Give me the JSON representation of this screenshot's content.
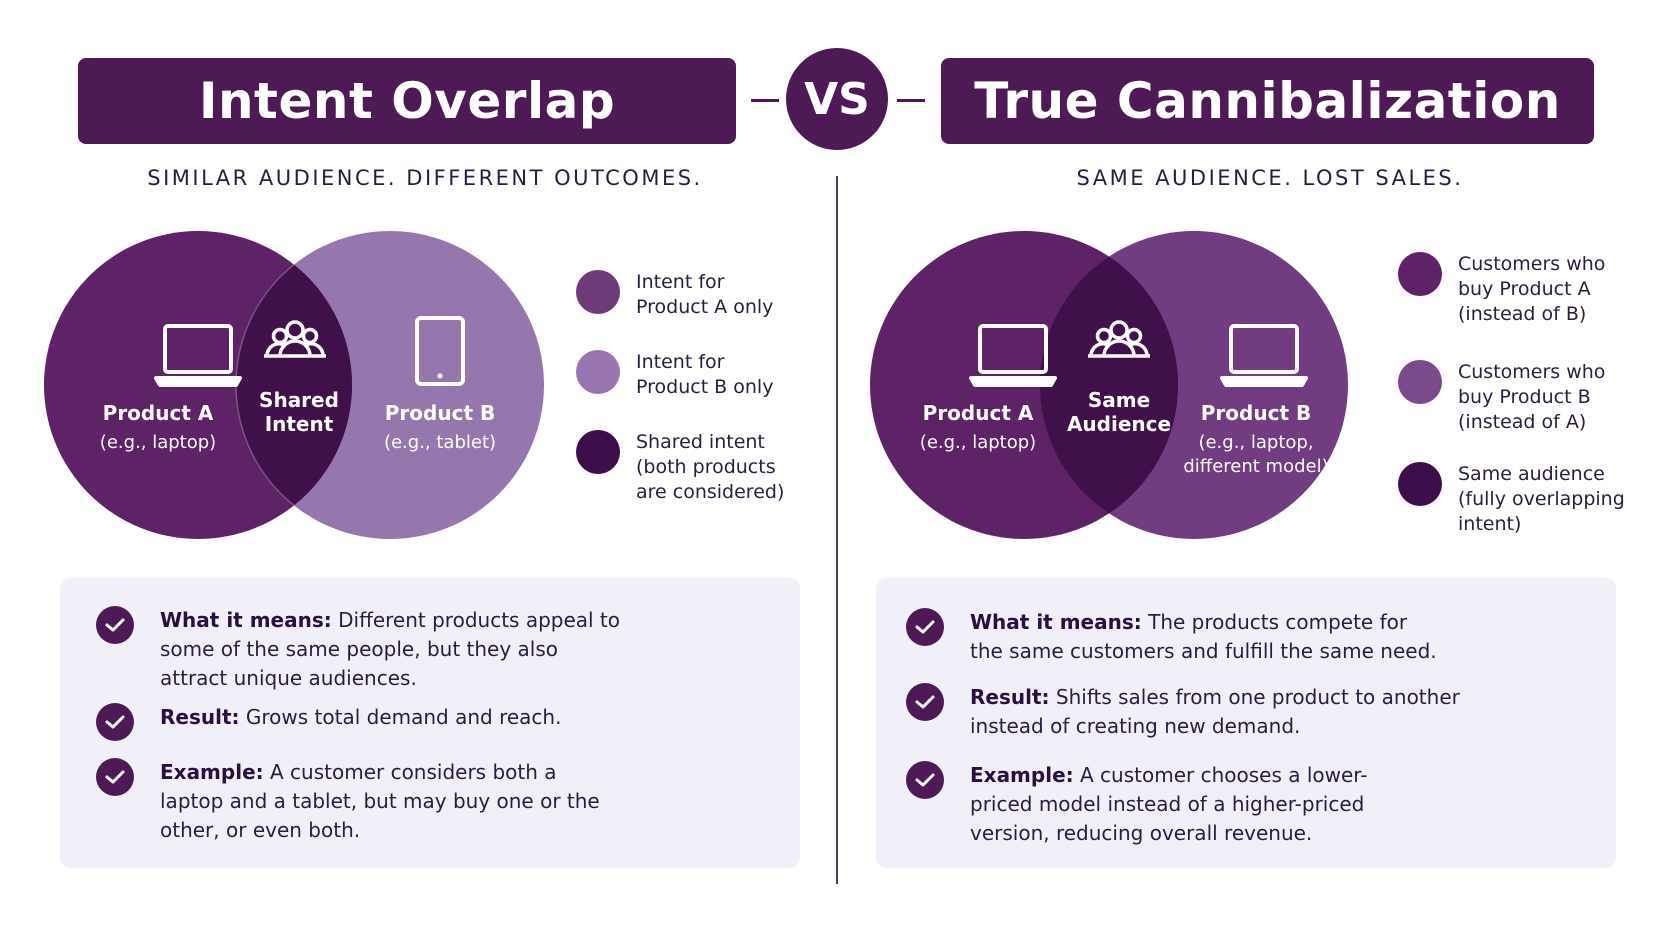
{
  "header": {
    "left_title": "Intent Overlap",
    "vs_label": "VS",
    "right_title": "True Cannibalization"
  },
  "left": {
    "subtitle": "SIMILAR AUDIENCE. DIFFERENT OUTCOMES.",
    "venn": {
      "a_label": "Product A",
      "a_sub": "(e.g., laptop)",
      "overlap_line1": "Shared",
      "overlap_line2": "Intent",
      "b_label": "Product B",
      "b_sub": "(e.g., tablet)",
      "a_icon": "laptop-icon",
      "overlap_icon": "people-group-icon",
      "b_icon": "tablet-icon"
    },
    "legend": [
      {
        "text": "Intent for\nProduct A only",
        "color": "#6e3a78"
      },
      {
        "text": "Intent for\nProduct B only",
        "color": "#9a76b0"
      },
      {
        "text": "Shared intent\n(both products\nare considered)",
        "color": "#3d0f4a"
      }
    ],
    "info": [
      {
        "label": "What it means:",
        "text": "Different products appeal to some of the same people, but they also attract unique audiences."
      },
      {
        "label": "Result:",
        "text": "Grows total demand and reach."
      },
      {
        "label": "Example:",
        "text": "A customer considers both a laptop and a tablet, but may buy one or the other, or even both."
      }
    ]
  },
  "right": {
    "subtitle": "SAME AUDIENCE. LOST SALES.",
    "venn": {
      "a_label": "Product A",
      "a_sub": "(e.g., laptop)",
      "overlap_line1": "Same",
      "overlap_line2": "Audience",
      "b_label": "Product B",
      "b_sub_line1": "(e.g., laptop,",
      "b_sub_line2": "different model)",
      "a_icon": "laptop-icon",
      "overlap_icon": "people-group-icon",
      "b_icon": "laptop-icon"
    },
    "legend": [
      {
        "text": "Customers who\nbuy Product A\n(instead of B)",
        "color": "#5e2266"
      },
      {
        "text": "Customers who\nbuy Product B\n(instead of A)",
        "color": "#7b4a8a"
      },
      {
        "text": "Same audience\n(fully overlapping\nintent)",
        "color": "#3d0f4a"
      }
    ],
    "info": [
      {
        "label": "What it means:",
        "text": "The products compete for the same customers and fulfill the same need."
      },
      {
        "label": "Result:",
        "text": "Shifts sales from one product to another instead of creating new demand."
      },
      {
        "label": "Example:",
        "text": "A customer chooses a lower-priced model instead of a higher-priced version, reducing overall revenue."
      }
    ]
  },
  "colors": {
    "banner": "#4d1a55",
    "left_a": "#5e2266",
    "left_b": "#9577ad",
    "left_overlap": "#3f1049",
    "right_a": "#5e2266",
    "right_b": "#713d80",
    "right_overlap": "#3f1049",
    "panel_bg": "#f1eff7"
  }
}
